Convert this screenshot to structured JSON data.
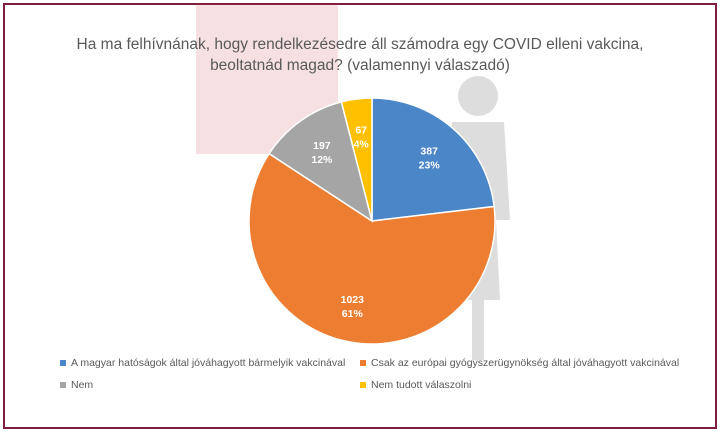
{
  "title": {
    "line1": "Ha ma felhívnának, hogy rendelkezésedre áll számodra egy COVID elleni vakcina,",
    "line2": "beoltatnád magad? (valamennyi válaszadó)"
  },
  "colors": {
    "frame": "#7a1f3d",
    "label_text": "#ffffff",
    "title_text": "#595959"
  },
  "chart_data": {
    "type": "pie",
    "title": "Ha ma felhívnának, hogy rendelkezésedre áll számodra egy COVID elleni vakcina, beoltatnád magad? (valamennyi válaszadó)",
    "legend_position": "bottom",
    "slices": [
      {
        "label": "A magyar hatóságok által jóváhagyott bármelyik vakcinával",
        "value": 387,
        "percent": "23%",
        "color": "#4a86c8"
      },
      {
        "label": "Csak az európai gyógyszerügynökség által jóváhagyott vakcinával",
        "value": 1023,
        "percent": "61%",
        "color": "#ed7d31"
      },
      {
        "label": "Nem",
        "value": 197,
        "percent": "12%",
        "color": "#a5a5a5"
      },
      {
        "label": "Nem tudott válaszolni",
        "value": 67,
        "percent": "4%",
        "color": "#ffc000"
      }
    ]
  }
}
